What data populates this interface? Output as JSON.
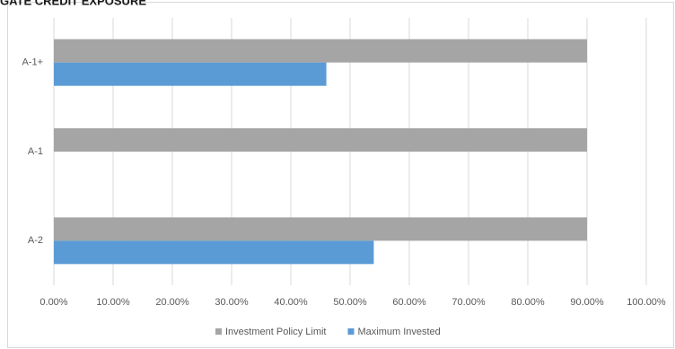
{
  "chart_data": {
    "type": "bar",
    "orientation": "horizontal",
    "title": "GATE CREDIT EXPOSURE",
    "categories": [
      "A-1+",
      "A-1",
      "A-2"
    ],
    "series": [
      {
        "name": "Investment Policy Limit",
        "color": "#a5a5a5",
        "values": [
          90,
          90,
          90
        ]
      },
      {
        "name": "Maximum Invested",
        "color": "#5b9bd5",
        "values": [
          46,
          0,
          54
        ]
      }
    ],
    "xlim": [
      0,
      100
    ],
    "xticks": [
      {
        "value": 0,
        "label": "0.00%"
      },
      {
        "value": 10,
        "label": "10.00%"
      },
      {
        "value": 20,
        "label": "20.00%"
      },
      {
        "value": 30,
        "label": "30.00%"
      },
      {
        "value": 40,
        "label": "40.00%"
      },
      {
        "value": 50,
        "label": "50.00%"
      },
      {
        "value": 60,
        "label": "60.00%"
      },
      {
        "value": 70,
        "label": "70.00%"
      },
      {
        "value": 80,
        "label": "80.00%"
      },
      {
        "value": 90,
        "label": "90.00%"
      },
      {
        "value": 100,
        "label": "100.00%"
      }
    ],
    "grid": true,
    "legend": "bottom"
  }
}
